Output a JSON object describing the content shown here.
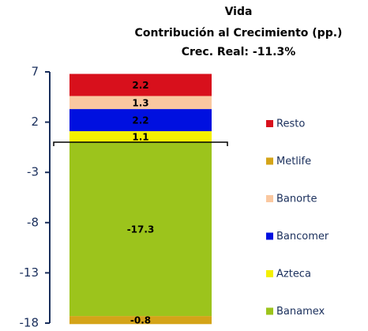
{
  "chart_data": {
    "type": "stacked_bar",
    "title": "Vida",
    "subtitle": [
      "Contribución al Crecimiento (pp.)",
      "Crec. Real: -11.3%"
    ],
    "categories": [
      null
    ],
    "series": [
      {
        "name": "Resto",
        "color": "#d8101c",
        "values": [
          2.2
        ]
      },
      {
        "name": "Metlife",
        "color": "#d4a418",
        "values": [
          -0.8
        ]
      },
      {
        "name": "Banorte",
        "color": "#fac8a0",
        "values": [
          1.3
        ]
      },
      {
        "name": "Bancomer",
        "color": "#0010e0",
        "values": [
          2.2
        ]
      },
      {
        "name": "Azteca",
        "color": "#f4f000",
        "values": [
          1.1
        ]
      },
      {
        "name": "Banamex",
        "color": "#9cc41c",
        "values": [
          -17.3
        ]
      }
    ],
    "ylim": [
      -18,
      7
    ],
    "yticks": [
      7,
      2,
      -3,
      -8,
      -13,
      -18
    ],
    "legend": "right"
  }
}
